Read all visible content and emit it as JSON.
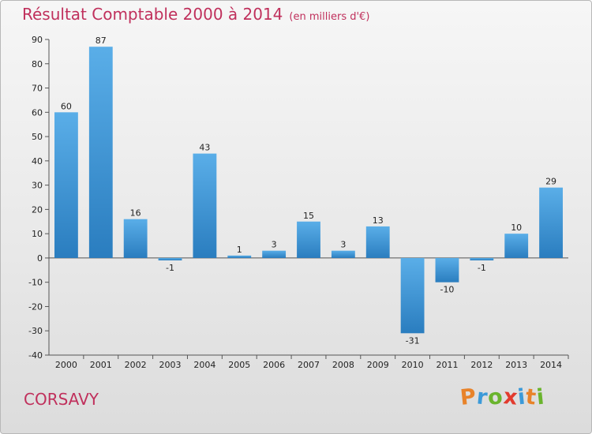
{
  "title": "Résultat Comptable 2000 à 2014",
  "subtitle": "(en milliers d'€)",
  "commune": "CORSAVY",
  "logo": {
    "text": "Proxiti",
    "letters": [
      {
        "char": "P",
        "color": "#e8832a"
      },
      {
        "char": "r",
        "color": "#3b9ad9"
      },
      {
        "char": "o",
        "color": "#6ab42d"
      },
      {
        "char": "x",
        "color": "#e23b2e"
      },
      {
        "char": "i",
        "color": "#3b9ad9"
      },
      {
        "char": "t",
        "color": "#e8832a"
      },
      {
        "char": "i",
        "color": "#6ab42d"
      }
    ]
  },
  "colors": {
    "bar_top": "#5aaee8",
    "bar_bottom": "#2a7dbf",
    "title": "#c0305c"
  },
  "chart_data": {
    "type": "bar",
    "title": "Résultat Comptable 2000 à 2014",
    "ylabel": "(en milliers d'€)",
    "xlabel": "",
    "categories": [
      "2000",
      "2001",
      "2002",
      "2003",
      "2004",
      "2005",
      "2006",
      "2007",
      "2008",
      "2009",
      "2010",
      "2011",
      "2012",
      "2013",
      "2014"
    ],
    "values": [
      60,
      87,
      16,
      -1,
      43,
      1,
      3,
      15,
      3,
      13,
      -31,
      -10,
      -1,
      10,
      29
    ],
    "ylim": [
      -40,
      90
    ],
    "yticks": [
      -40,
      -30,
      -20,
      -10,
      0,
      10,
      20,
      30,
      40,
      50,
      60,
      70,
      80,
      90
    ],
    "grid": false
  }
}
